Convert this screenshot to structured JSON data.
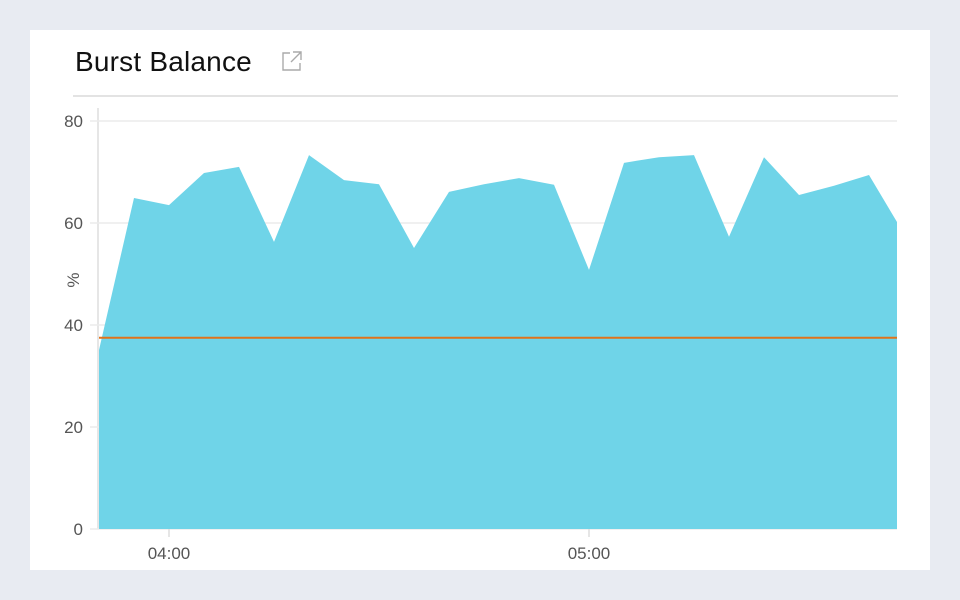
{
  "panel": {
    "title": "Burst Balance",
    "external_link_icon": "external-link-icon"
  },
  "chart_data": {
    "type": "area",
    "title": "Burst Balance",
    "ylabel": "%",
    "xlabel": "",
    "ylim": [
      0,
      80
    ],
    "yticks": [
      "0",
      "20",
      "40",
      "60",
      "80"
    ],
    "xlim": [
      "03:50",
      "05:44"
    ],
    "xticks": [
      "04:00",
      "05:00"
    ],
    "grid": true,
    "x": [
      "03:50",
      "03:55",
      "04:00",
      "04:05",
      "04:10",
      "04:15",
      "04:20",
      "04:25",
      "04:30",
      "04:35",
      "04:40",
      "04:45",
      "04:50",
      "04:55",
      "05:00",
      "05:05",
      "05:10",
      "05:15",
      "05:20",
      "05:25",
      "05:30",
      "05:35",
      "05:40",
      "05:44"
    ],
    "series": [
      {
        "values": [
          35.1,
          64.9,
          63.5,
          69.8,
          71.0,
          56.3,
          73.3,
          68.4,
          67.6,
          55.1,
          66.1,
          67.6,
          68.8,
          67.5,
          50.8,
          71.8,
          72.9,
          73.3,
          57.3,
          72.9,
          65.5,
          67.3,
          69.4,
          60.2
        ],
        "color": "#6fd4e8"
      }
    ],
    "threshold": {
      "value": 37.5,
      "color": "#e0731a"
    }
  }
}
